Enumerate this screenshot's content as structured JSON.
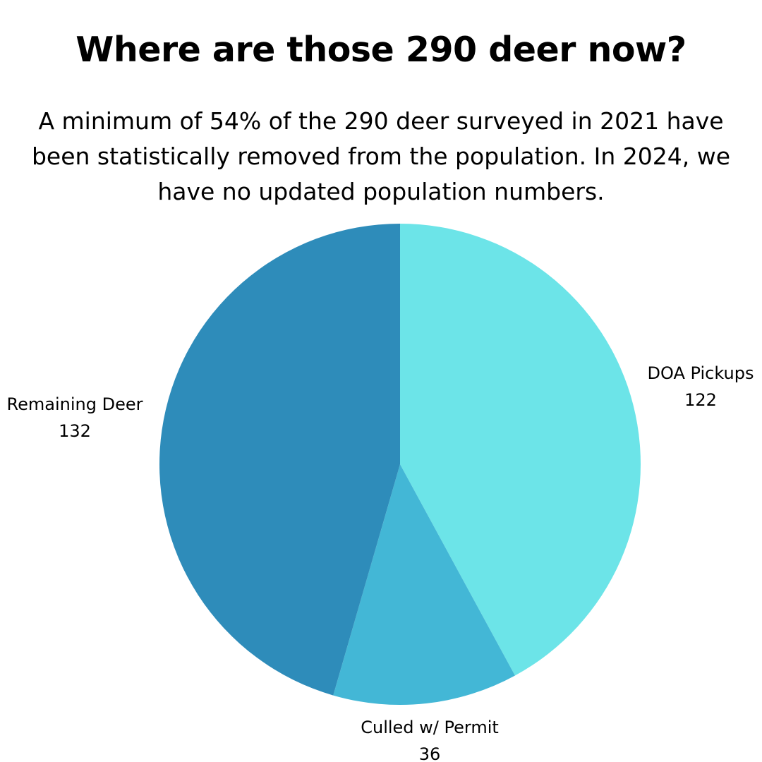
{
  "header": {
    "title": "Where are those 290 deer now?",
    "subtitle": "A minimum of 54% of the 290 deer surveyed in 2021 have been statistically removed from the population. In 2024, we have no updated population numbers."
  },
  "chart_data": {
    "type": "pie",
    "title": "Where are those 290 deer now?",
    "subtitle": "A minimum of 54% of the 290 deer surveyed in 2021 have been statistically removed from the population. In 2024, we have no updated population numbers.",
    "slices": [
      {
        "label": "DOA Pickups",
        "value": 122,
        "color": "#6ce4e8"
      },
      {
        "label": "Culled w/ Permit",
        "value": 36,
        "color": "#43b7d6"
      },
      {
        "label": "Remaining Deer",
        "value": 132,
        "color": "#2e8cba"
      }
    ],
    "start_angle": "12 o'clock",
    "direction": "clockwise",
    "legend": "none",
    "label_style": "outside, name above value"
  }
}
